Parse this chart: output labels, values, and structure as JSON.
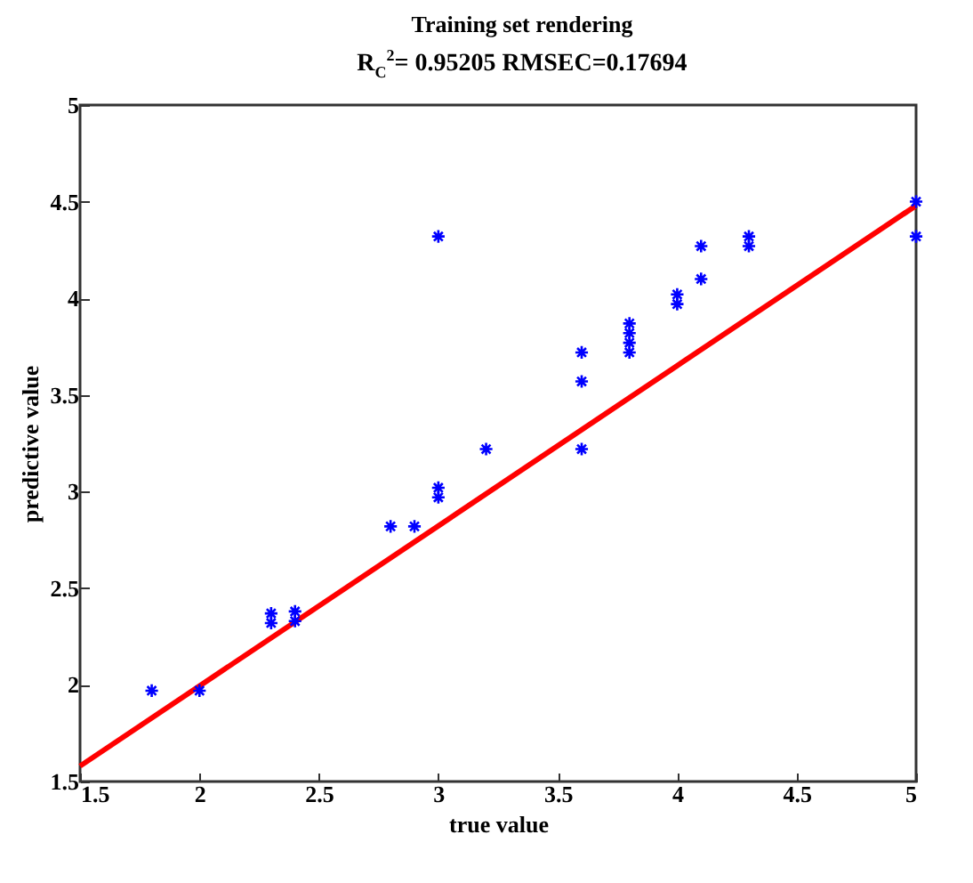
{
  "chart_data": {
    "type": "scatter",
    "title": "Training set rendering",
    "subtitle": "R$_{C}$$^{2}$= 0.95205  RMSEC=0.17694",
    "xlabel": "true value",
    "ylabel": "predictive value",
    "xlim": [
      1.5,
      5
    ],
    "ylim": [
      1.5,
      5
    ],
    "xticks": [
      1.5,
      2,
      2.5,
      3,
      3.5,
      4,
      4.5,
      5
    ],
    "yticks": [
      1.5,
      2,
      2.5,
      3,
      3.5,
      4,
      4.5,
      5
    ],
    "grid": false,
    "marker": "cross",
    "series": [
      {
        "color": "#0000ff",
        "x": [
          1.8,
          2.0,
          2.3,
          2.3,
          2.4,
          2.4,
          2.8,
          2.9,
          3.0,
          3.0,
          3.0,
          3.2,
          3.6,
          3.6,
          3.6,
          3.8,
          3.8,
          3.8,
          3.8,
          4.0,
          4.0,
          4.1,
          4.1,
          4.3,
          4.3,
          5.0,
          5.0
        ],
        "values": [
          1.97,
          1.97,
          2.37,
          2.32,
          2.38,
          2.33,
          2.82,
          2.82,
          3.02,
          2.97,
          4.32,
          3.22,
          3.22,
          3.72,
          3.57,
          3.87,
          3.82,
          3.77,
          3.72,
          4.02,
          3.97,
          4.27,
          4.1,
          4.32,
          4.27,
          4.5,
          4.32
        ]
      },
      {
        "type": "line",
        "color": "#ff0000",
        "x": [
          1.5,
          5
        ],
        "values": [
          1.58,
          4.48
        ],
        "marker": "none",
        "line_style": "solid"
      }
    ]
  }
}
